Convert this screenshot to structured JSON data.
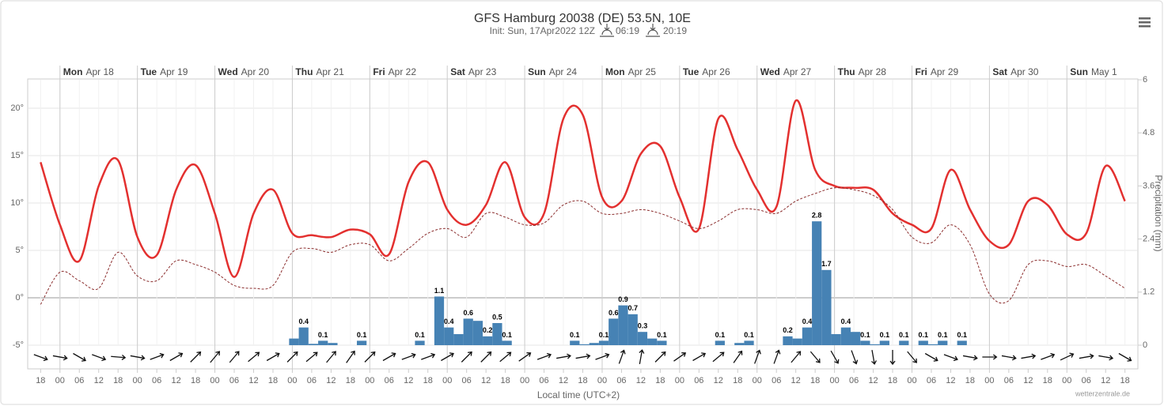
{
  "chart_data": {
    "type": "line",
    "title": "GFS Hamburg 20038 (DE) 53.5N, 10E",
    "subtitle": "Init: Sun, 17Apr2022 12Z",
    "sunrise": "06:19",
    "sunset": "20:19",
    "xlabel": "Local time (UTC+2)",
    "y2label": "Precipitation (mm)",
    "credit": "wetterzentrale.de",
    "xlim": [
      "2022-04-17T14:00",
      "2022-05-01T22:00"
    ],
    "ylim": [
      -5,
      23
    ],
    "yticks": [
      {
        "value": -5,
        "label": "-5°"
      },
      {
        "value": 0,
        "label": "0°"
      },
      {
        "value": 5,
        "label": "5°"
      },
      {
        "value": 10,
        "label": "10°"
      },
      {
        "value": 15,
        "label": "15°"
      },
      {
        "value": 20,
        "label": "20°"
      }
    ],
    "y2lim": [
      0,
      6
    ],
    "y2ticks": [
      0,
      1.2,
      2.4,
      3.6,
      4.8,
      6
    ],
    "grid": true,
    "days": [
      {
        "value": "2022-04-18T00:00",
        "weekday": "Mon",
        "date": "Apr 18"
      },
      {
        "value": "2022-04-19T00:00",
        "weekday": "Tue",
        "date": "Apr 19"
      },
      {
        "value": "2022-04-20T00:00",
        "weekday": "Wed",
        "date": "Apr 20"
      },
      {
        "value": "2022-04-21T00:00",
        "weekday": "Thu",
        "date": "Apr 21"
      },
      {
        "value": "2022-04-22T00:00",
        "weekday": "Fri",
        "date": "Apr 22"
      },
      {
        "value": "2022-04-23T00:00",
        "weekday": "Sat",
        "date": "Apr 23"
      },
      {
        "value": "2022-04-24T00:00",
        "weekday": "Sun",
        "date": "Apr 24"
      },
      {
        "value": "2022-04-25T00:00",
        "weekday": "Mon",
        "date": "Apr 25"
      },
      {
        "value": "2022-04-26T00:00",
        "weekday": "Tue",
        "date": "Apr 26"
      },
      {
        "value": "2022-04-27T00:00",
        "weekday": "Wed",
        "date": "Apr 27"
      },
      {
        "value": "2022-04-28T00:00",
        "weekday": "Thu",
        "date": "Apr 28"
      },
      {
        "value": "2022-04-29T00:00",
        "weekday": "Fri",
        "date": "Apr 29"
      },
      {
        "value": "2022-04-30T00:00",
        "weekday": "Sat",
        "date": "Apr 30"
      },
      {
        "value": "2022-05-01T00:00",
        "weekday": "Sun",
        "date": "May 1"
      }
    ],
    "x": [
      "2022-04-17T18:00",
      "2022-04-18T00:00",
      "2022-04-18T06:00",
      "2022-04-18T12:00",
      "2022-04-18T18:00",
      "2022-04-19T00:00",
      "2022-04-19T06:00",
      "2022-04-19T12:00",
      "2022-04-19T18:00",
      "2022-04-20T00:00",
      "2022-04-20T06:00",
      "2022-04-20T12:00",
      "2022-04-20T18:00",
      "2022-04-21T00:00",
      "2022-04-21T06:00",
      "2022-04-21T12:00",
      "2022-04-21T18:00",
      "2022-04-22T00:00",
      "2022-04-22T06:00",
      "2022-04-22T12:00",
      "2022-04-22T18:00",
      "2022-04-23T00:00",
      "2022-04-23T06:00",
      "2022-04-23T12:00",
      "2022-04-23T18:00",
      "2022-04-24T00:00",
      "2022-04-24T06:00",
      "2022-04-24T12:00",
      "2022-04-24T18:00",
      "2022-04-25T00:00",
      "2022-04-25T06:00",
      "2022-04-25T12:00",
      "2022-04-25T18:00",
      "2022-04-26T00:00",
      "2022-04-26T06:00",
      "2022-04-26T12:00",
      "2022-04-26T18:00",
      "2022-04-27T00:00",
      "2022-04-27T06:00",
      "2022-04-27T12:00",
      "2022-04-27T18:00",
      "2022-04-28T00:00",
      "2022-04-28T06:00",
      "2022-04-28T12:00",
      "2022-04-28T18:00",
      "2022-04-29T00:00",
      "2022-04-29T06:00",
      "2022-04-29T12:00",
      "2022-04-29T18:00",
      "2022-04-30T00:00",
      "2022-04-30T06:00",
      "2022-04-30T12:00",
      "2022-04-30T18:00",
      "2022-05-01T00:00",
      "2022-05-01T06:00",
      "2022-05-01T12:00",
      "2022-05-01T18:00"
    ],
    "xticks": [
      {
        "value": "2022-04-17T18:00",
        "label": "18"
      },
      {
        "value": "2022-04-18T00:00",
        "label": "00"
      },
      {
        "value": "2022-04-18T06:00",
        "label": "06"
      },
      {
        "value": "2022-04-18T12:00",
        "label": "12"
      },
      {
        "value": "2022-04-18T18:00",
        "label": "18"
      },
      {
        "value": "2022-04-19T00:00",
        "label": "00"
      },
      {
        "value": "2022-04-19T06:00",
        "label": "06"
      },
      {
        "value": "2022-04-19T12:00",
        "label": "12"
      },
      {
        "value": "2022-04-19T18:00",
        "label": "18"
      },
      {
        "value": "2022-04-20T00:00",
        "label": "00"
      },
      {
        "value": "2022-04-20T06:00",
        "label": "06"
      },
      {
        "value": "2022-04-20T12:00",
        "label": "12"
      },
      {
        "value": "2022-04-20T18:00",
        "label": "18"
      },
      {
        "value": "2022-04-21T00:00",
        "label": "00"
      },
      {
        "value": "2022-04-21T06:00",
        "label": "06"
      },
      {
        "value": "2022-04-21T12:00",
        "label": "12"
      },
      {
        "value": "2022-04-21T18:00",
        "label": "18"
      },
      {
        "value": "2022-04-22T00:00",
        "label": "00"
      },
      {
        "value": "2022-04-22T06:00",
        "label": "06"
      },
      {
        "value": "2022-04-22T12:00",
        "label": "12"
      },
      {
        "value": "2022-04-22T18:00",
        "label": "18"
      },
      {
        "value": "2022-04-23T00:00",
        "label": "00"
      },
      {
        "value": "2022-04-23T06:00",
        "label": "06"
      },
      {
        "value": "2022-04-23T12:00",
        "label": "12"
      },
      {
        "value": "2022-04-23T18:00",
        "label": "18"
      },
      {
        "value": "2022-04-24T00:00",
        "label": "00"
      },
      {
        "value": "2022-04-24T06:00",
        "label": "06"
      },
      {
        "value": "2022-04-24T12:00",
        "label": "12"
      },
      {
        "value": "2022-04-24T18:00",
        "label": "18"
      },
      {
        "value": "2022-04-25T00:00",
        "label": "00"
      },
      {
        "value": "2022-04-25T06:00",
        "label": "06"
      },
      {
        "value": "2022-04-25T12:00",
        "label": "12"
      },
      {
        "value": "2022-04-25T18:00",
        "label": "18"
      },
      {
        "value": "2022-04-26T00:00",
        "label": "00"
      },
      {
        "value": "2022-04-26T06:00",
        "label": "06"
      },
      {
        "value": "2022-04-26T12:00",
        "label": "12"
      },
      {
        "value": "2022-04-26T18:00",
        "label": "18"
      },
      {
        "value": "2022-04-27T00:00",
        "label": "00"
      },
      {
        "value": "2022-04-27T06:00",
        "label": "06"
      },
      {
        "value": "2022-04-27T12:00",
        "label": "12"
      },
      {
        "value": "2022-04-27T18:00",
        "label": "18"
      },
      {
        "value": "2022-04-28T00:00",
        "label": "00"
      },
      {
        "value": "2022-04-28T06:00",
        "label": "06"
      },
      {
        "value": "2022-04-28T12:00",
        "label": "12"
      },
      {
        "value": "2022-04-28T18:00",
        "label": "18"
      },
      {
        "value": "2022-04-29T00:00",
        "label": "00"
      },
      {
        "value": "2022-04-29T06:00",
        "label": "06"
      },
      {
        "value": "2022-04-29T12:00",
        "label": "12"
      },
      {
        "value": "2022-04-29T18:00",
        "label": "18"
      },
      {
        "value": "2022-04-30T00:00",
        "label": "00"
      },
      {
        "value": "2022-04-30T06:00",
        "label": "06"
      },
      {
        "value": "2022-04-30T12:00",
        "label": "12"
      },
      {
        "value": "2022-04-30T18:00",
        "label": "18"
      },
      {
        "value": "2022-05-01T00:00",
        "label": "00"
      },
      {
        "value": "2022-05-01T06:00",
        "label": "06"
      },
      {
        "value": "2022-05-01T12:00",
        "label": "12"
      },
      {
        "value": "2022-05-01T18:00",
        "label": "18"
      }
    ],
    "series": [
      {
        "color": "#e3302f",
        "dashed": false,
        "values": [
          14.3,
          7.7,
          3.9,
          11.8,
          14.5,
          6.4,
          4.5,
          11.4,
          14,
          8.9,
          2.2,
          8.9,
          11.4,
          6.8,
          6.6,
          6.4,
          7.2,
          6.7,
          4.6,
          12.2,
          14.3,
          9.3,
          7.7,
          9.8,
          14.3,
          8.5,
          8.9,
          18.9,
          19.3,
          10.6,
          10.2,
          15.2,
          16,
          10.6,
          7.3,
          18.9,
          15.6,
          11.4,
          9.6,
          20.8,
          13.5,
          11.8,
          11.6,
          11.4,
          8.9,
          7.7,
          7.3,
          13.5,
          9.3,
          6,
          5.6,
          10.2,
          9.8,
          6.7,
          6.8,
          13.9,
          10.2
        ]
      },
      {
        "color": "#8b2d2d",
        "dashed": true,
        "values": [
          -0.7,
          2.7,
          1.8,
          1,
          4.8,
          2.3,
          1.8,
          3.9,
          3.5,
          2.7,
          1.3,
          1,
          1.3,
          4.8,
          5.2,
          4.8,
          5.6,
          5.6,
          3.9,
          5.2,
          6.8,
          7.3,
          6.4,
          8.9,
          8.5,
          7.7,
          7.9,
          9.8,
          10.2,
          8.9,
          8.9,
          9.3,
          8.9,
          8.1,
          7.3,
          8.1,
          9.3,
          9.3,
          8.9,
          10.2,
          11,
          11.6,
          11.4,
          10.8,
          9.3,
          6.4,
          5.8,
          7.7,
          5.6,
          0.4,
          -0.3,
          3.5,
          3.9,
          3.3,
          3.5,
          2.3,
          1
        ]
      },
      {
        "type": "bar",
        "axis": "y2",
        "color": "#4682b4",
        "x": [
          "2022-04-20T23:00",
          "2022-04-21T02:00",
          "2022-04-21T05:00",
          "2022-04-21T08:00",
          "2022-04-21T11:00",
          "2022-04-21T20:00",
          "2022-04-22T14:00",
          "2022-04-22T20:00",
          "2022-04-22T23:00",
          "2022-04-23T02:00",
          "2022-04-23T05:00",
          "2022-04-23T08:00",
          "2022-04-23T11:00",
          "2022-04-23T14:00",
          "2022-04-23T17:00",
          "2022-04-24T14:00",
          "2022-04-24T17:00",
          "2022-04-24T20:00",
          "2022-04-24T23:00",
          "2022-04-25T02:00",
          "2022-04-25T05:00",
          "2022-04-25T08:00",
          "2022-04-25T11:00",
          "2022-04-25T14:00",
          "2022-04-25T17:00",
          "2022-04-26T11:00",
          "2022-04-26T17:00",
          "2022-04-26T20:00",
          "2022-04-27T08:00",
          "2022-04-27T11:00",
          "2022-04-27T14:00",
          "2022-04-27T17:00",
          "2022-04-27T20:00",
          "2022-04-27T23:00",
          "2022-04-28T02:00",
          "2022-04-28T05:00",
          "2022-04-28T08:00",
          "2022-04-28T11:00",
          "2022-04-28T14:00",
          "2022-04-28T20:00",
          "2022-04-29T02:00",
          "2022-04-29T05:00",
          "2022-04-29T08:00",
          "2022-04-29T14:00"
        ],
        "values": [
          0.15,
          0.4,
          0.03,
          0.1,
          0.05,
          0.1,
          0.1,
          1.1,
          0.4,
          0.25,
          0.6,
          0.55,
          0.2,
          0.5,
          0.1,
          0.1,
          0.02,
          0.05,
          0.1,
          0.6,
          0.9,
          0.7,
          0.3,
          0.15,
          0.1,
          0.1,
          0.05,
          0.1,
          0.2,
          0.15,
          0.4,
          2.8,
          1.7,
          0.25,
          0.4,
          0.3,
          0.1,
          0.02,
          0.1,
          0.1,
          0.1,
          0.02,
          0.1,
          0.1
        ],
        "value_labels": [
          null,
          "0.4",
          null,
          "0.1",
          null,
          "0.1",
          "0.1",
          "1.1",
          "0.4",
          null,
          "0.6",
          null,
          "0.2",
          "0.5",
          "0.1",
          "0.1",
          null,
          null,
          "0.1",
          "0.6",
          "0.9",
          "0.7",
          "0.3",
          null,
          "0.1",
          "0.1",
          null,
          "0.1",
          "0.2",
          null,
          "0.4",
          "2.8",
          "1.7",
          null,
          "0.4",
          null,
          "0.1",
          null,
          "0.1",
          "0.1",
          "0.1",
          null,
          "0.1",
          "0.1"
        ]
      }
    ],
    "wind_direction": [
      290,
      280,
      300,
      290,
      275,
      280,
      250,
      240,
      225,
      220,
      220,
      230,
      240,
      225,
      230,
      220,
      215,
      225,
      240,
      250,
      250,
      240,
      225,
      225,
      230,
      235,
      250,
      260,
      260,
      250,
      200,
      190,
      225,
      235,
      240,
      230,
      215,
      200,
      200,
      220,
      320,
      330,
      340,
      350,
      0,
      320,
      300,
      290,
      280,
      270,
      280,
      260,
      250,
      245,
      260,
      280,
      300
    ]
  }
}
